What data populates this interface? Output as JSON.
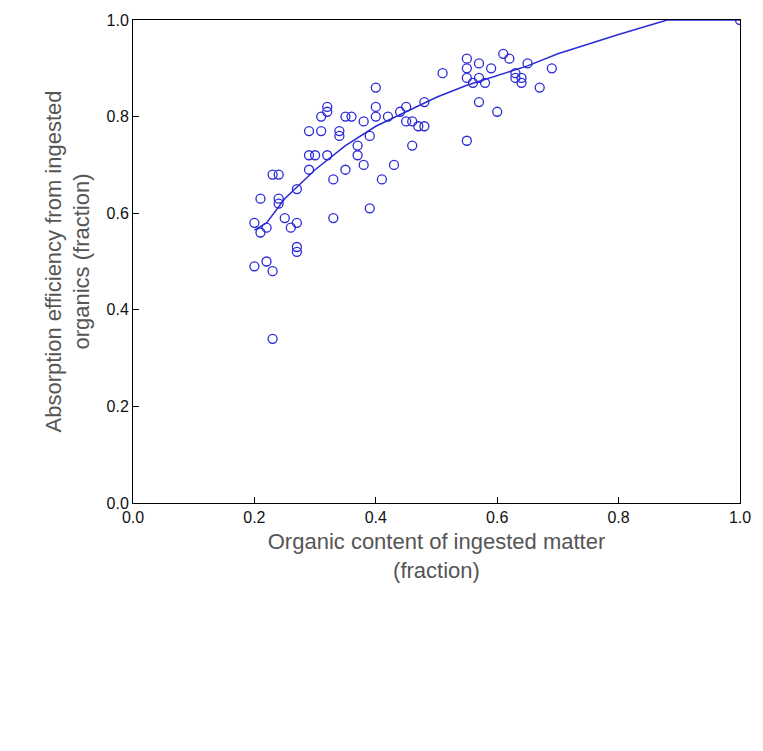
{
  "chart_data": {
    "type": "scatter",
    "x_label": "Organic content of ingested matter (fraction)",
    "y_label": "Absorption efficiency from ingested organics (fraction)",
    "xlim": [
      0,
      1
    ],
    "ylim": [
      0,
      1
    ],
    "xticks": [
      {
        "value": 0,
        "label": "0.0"
      },
      0.2,
      0.4,
      0.6,
      0.8,
      {
        "value": 1,
        "label": "1.0"
      }
    ],
    "yticks": [
      {
        "value": 0,
        "label": "0.0"
      },
      0.2,
      0.4,
      0.6,
      0.8,
      {
        "value": 1,
        "label": "1.0"
      }
    ],
    "grid": false,
    "series": [
      {
        "type": "scatter",
        "marker": "circle-open",
        "color": "#2a2ad8",
        "x": [
          0.2,
          0.2,
          0.21,
          0.21,
          0.22,
          0.22,
          0.23,
          0.23,
          0.24,
          0.24,
          0.23,
          0.24,
          0.25,
          0.26,
          0.27,
          0.27,
          0.27,
          0.27,
          0.29,
          0.29,
          0.29,
          0.3,
          0.31,
          0.32,
          0.32,
          0.31,
          0.32,
          0.33,
          0.33,
          0.34,
          0.34,
          0.35,
          0.35,
          0.36,
          0.37,
          0.37,
          0.38,
          0.38,
          0.39,
          0.39,
          0.4,
          0.4,
          0.4,
          0.41,
          0.42,
          0.43,
          0.44,
          0.45,
          0.45,
          0.46,
          0.46,
          0.47,
          0.48,
          0.48,
          0.51,
          0.55,
          0.55,
          0.55,
          0.55,
          0.56,
          0.57,
          0.57,
          0.57,
          0.58,
          0.59,
          0.6,
          0.61,
          0.62,
          0.63,
          0.63,
          0.64,
          0.64,
          0.65,
          0.67,
          0.69,
          1.0
        ],
        "values": [
          0.58,
          0.49,
          0.63,
          0.56,
          0.5,
          0.57,
          0.68,
          0.48,
          0.68,
          0.63,
          0.34,
          0.62,
          0.59,
          0.57,
          0.65,
          0.58,
          0.52,
          0.53,
          0.72,
          0.69,
          0.77,
          0.72,
          0.77,
          0.82,
          0.81,
          0.8,
          0.72,
          0.67,
          0.59,
          0.77,
          0.76,
          0.8,
          0.69,
          0.8,
          0.74,
          0.72,
          0.79,
          0.7,
          0.61,
          0.76,
          0.8,
          0.86,
          0.82,
          0.67,
          0.8,
          0.7,
          0.81,
          0.82,
          0.79,
          0.79,
          0.74,
          0.78,
          0.78,
          0.83,
          0.89,
          0.92,
          0.9,
          0.88,
          0.75,
          0.87,
          0.91,
          0.88,
          0.83,
          0.87,
          0.9,
          0.81,
          0.93,
          0.92,
          0.88,
          0.89,
          0.88,
          0.87,
          0.91,
          0.86,
          0.9,
          1.0
        ]
      },
      {
        "type": "line",
        "line_style": "solid",
        "color": "#2a2ad8",
        "x": [
          0.2,
          0.22,
          0.25,
          0.3,
          0.35,
          0.4,
          0.45,
          0.5,
          0.55,
          0.6,
          0.65,
          0.7,
          0.8,
          0.88,
          1.0
        ],
        "values": [
          0.565,
          0.58,
          0.63,
          0.69,
          0.74,
          0.78,
          0.81,
          0.84,
          0.865,
          0.885,
          0.905,
          0.93,
          0.97,
          1.0,
          1.0
        ]
      }
    ]
  }
}
